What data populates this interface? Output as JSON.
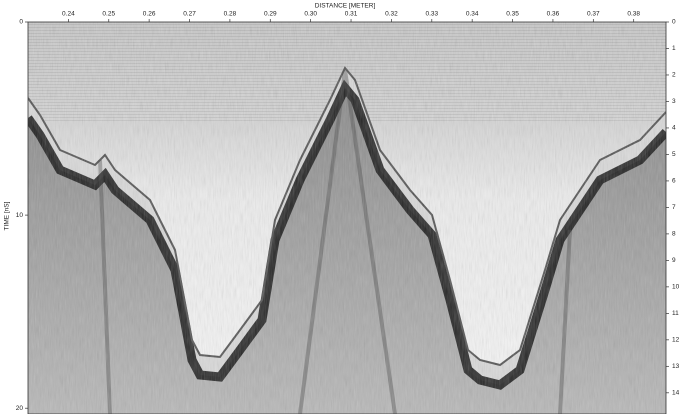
{
  "chart_data": {
    "type": "radargram",
    "x_label": "DISTANCE [METER]",
    "y_label": "TIME [nS]",
    "xlim": [
      0.23,
      0.388
    ],
    "xticks": [
      0.24,
      0.25,
      0.26,
      0.27,
      0.28,
      0.29,
      {
        "value": 0.3,
        "label": "0.30"
      },
      0.31,
      0.32,
      0.33,
      0.34,
      0.35,
      0.36,
      0.37,
      0.38
    ],
    "ylim": [
      0,
      20.3
    ],
    "yticks": [
      0,
      10,
      20
    ],
    "y2lim": [
      0,
      14.8
    ],
    "y2ticks": [
      0,
      1,
      2,
      3,
      4,
      5,
      6,
      7,
      8,
      9,
      10,
      11,
      12,
      13,
      14
    ]
  }
}
